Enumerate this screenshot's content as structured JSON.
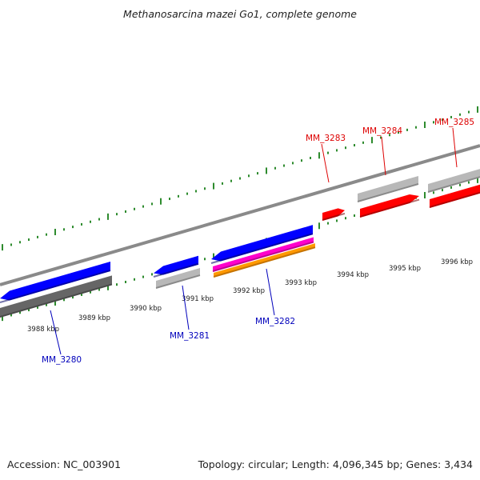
{
  "title": "Methanosarcina mazei Go1, complete genome",
  "footer": {
    "accession": "Accession: NC_003901",
    "summary": "Topology: circular; Length: 4,096,345 bp; Genes: 3,434"
  },
  "colors": {
    "background": "#ffffff",
    "backbone": "#8a8a8a",
    "tick": "#2e8b2e",
    "forward_gene": "#ff0000",
    "reverse_gene": "#0000ff",
    "gray_feature": "#b8b8b8",
    "dark_gray_feature": "#666666",
    "magenta_feature": "#ff00cc",
    "orange_feature": "#ff9900",
    "forward_label": "#dd0000",
    "reverse_label": "#0000bb",
    "tick_label": "#222222"
  },
  "scale": {
    "unit": "kbp",
    "tick_labels": [
      "3988 kbp",
      "3989 kbp",
      "3990 kbp",
      "3991 kbp",
      "3992 kbp",
      "3993 kbp",
      "3994 kbp",
      "3995 kbp",
      "3996 kbp"
    ]
  },
  "genes": [
    {
      "label": "MM_3280",
      "strand": "reverse"
    },
    {
      "label": "MM_3281",
      "strand": "reverse"
    },
    {
      "label": "MM_3282",
      "strand": "reverse"
    },
    {
      "label": "MM_3283",
      "strand": "forward"
    },
    {
      "label": "MM_3284",
      "strand": "forward"
    },
    {
      "label": "MM_3285",
      "strand": "forward"
    }
  ]
}
